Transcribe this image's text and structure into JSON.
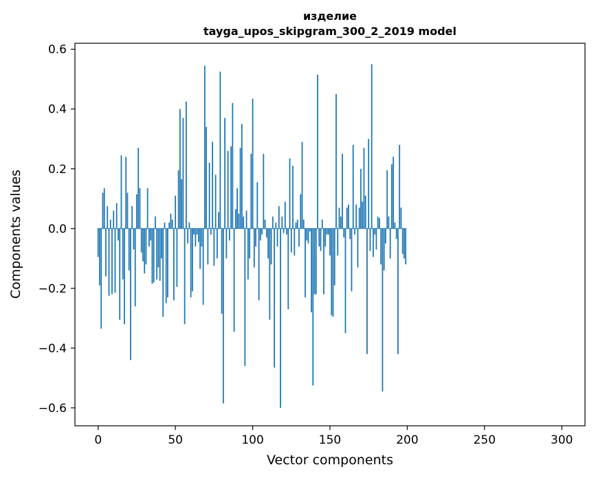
{
  "chart_data": {
    "type": "bar",
    "title": "изделие",
    "subtitle": "tayga_upos_skipgram_300_2_2019 model",
    "xlabel": "Vector components",
    "ylabel": "Components values",
    "xlim": [
      -15,
      315
    ],
    "ylim": [
      -0.66,
      0.62
    ],
    "xticks": [
      0,
      50,
      100,
      150,
      200,
      250,
      300
    ],
    "yticks": [
      -0.6,
      -0.4,
      -0.2,
      0.0,
      0.2,
      0.4,
      0.6
    ],
    "xtick_labels": [
      "0",
      "50",
      "100",
      "150",
      "200",
      "250",
      "300"
    ],
    "ytick_labels": [
      "−0.6",
      "−0.4",
      "−0.2",
      "0.0",
      "0.2",
      "0.4",
      "0.6"
    ],
    "bar_color": "#1f77b4",
    "grid": false,
    "values": [
      -0.095,
      -0.19,
      -0.335,
      0.12,
      0.135,
      -0.16,
      0.075,
      -0.225,
      0.03,
      -0.22,
      0.06,
      -0.215,
      0.085,
      -0.04,
      -0.305,
      0.245,
      -0.17,
      -0.32,
      0.24,
      0.12,
      -0.14,
      -0.44,
      0.075,
      -0.07,
      -0.26,
      0.115,
      0.27,
      0.135,
      -0.08,
      -0.11,
      -0.15,
      -0.12,
      0.135,
      -0.06,
      -0.04,
      -0.185,
      -0.18,
      0.04,
      -0.17,
      -0.13,
      -0.175,
      -0.1,
      -0.295,
      0.02,
      -0.25,
      -0.23,
      0.02,
      0.05,
      0.03,
      -0.24,
      0.11,
      -0.195,
      0.195,
      0.4,
      0.165,
      0.37,
      -0.32,
      0.425,
      -0.05,
      0.02,
      -0.23,
      -0.21,
      -0.02,
      -0.06,
      -0.02,
      -0.045,
      -0.135,
      -0.06,
      -0.255,
      0.545,
      0.34,
      -0.12,
      0.22,
      -0.02,
      0.29,
      -0.125,
      0.18,
      -0.1,
      0.055,
      0.525,
      -0.285,
      -0.585,
      0.37,
      -0.1,
      0.26,
      -0.04,
      0.275,
      0.42,
      -0.345,
      0.065,
      0.135,
      0.05,
      0.27,
      0.35,
      0.04,
      -0.46,
      0.06,
      -0.17,
      -0.1,
      0.25,
      0.435,
      -0.13,
      -0.06,
      0.155,
      -0.24,
      -0.04,
      -0.02,
      0.25,
      0.03,
      -0.03,
      -0.1,
      -0.305,
      -0.12,
      0.04,
      -0.465,
      0.02,
      -0.06,
      0.075,
      -0.6,
      0.04,
      -0.015,
      0.09,
      -0.02,
      -0.27,
      0.235,
      -0.08,
      0.21,
      -0.09,
      0.02,
      0.03,
      -0.06,
      0.115,
      0.29,
      0.03,
      -0.23,
      -0.04,
      -0.05,
      -0.01,
      -0.28,
      -0.525,
      -0.22,
      -0.22,
      0.515,
      -0.06,
      -0.075,
      0.03,
      -0.22,
      -0.06,
      -0.02,
      -0.02,
      -0.09,
      -0.29,
      -0.295,
      -0.19,
      0.45,
      -0.09,
      0.07,
      0.04,
      0.25,
      -0.03,
      -0.35,
      0.07,
      0.08,
      -0.035,
      -0.21,
      0.28,
      -0.02,
      0.08,
      -0.13,
      0.07,
      0.2,
      0.09,
      0.27,
      0.11,
      -0.42,
      0.3,
      -0.075,
      0.55,
      -0.095,
      -0.02,
      -0.07,
      0.04,
      0.035,
      -0.12,
      -0.545,
      -0.14,
      -0.05,
      0.195,
      0.04,
      -0.1,
      0.215,
      0.24,
      0.02,
      -0.035,
      -0.42,
      0.28,
      0.07,
      -0.085,
      -0.1,
      -0.12
    ]
  }
}
